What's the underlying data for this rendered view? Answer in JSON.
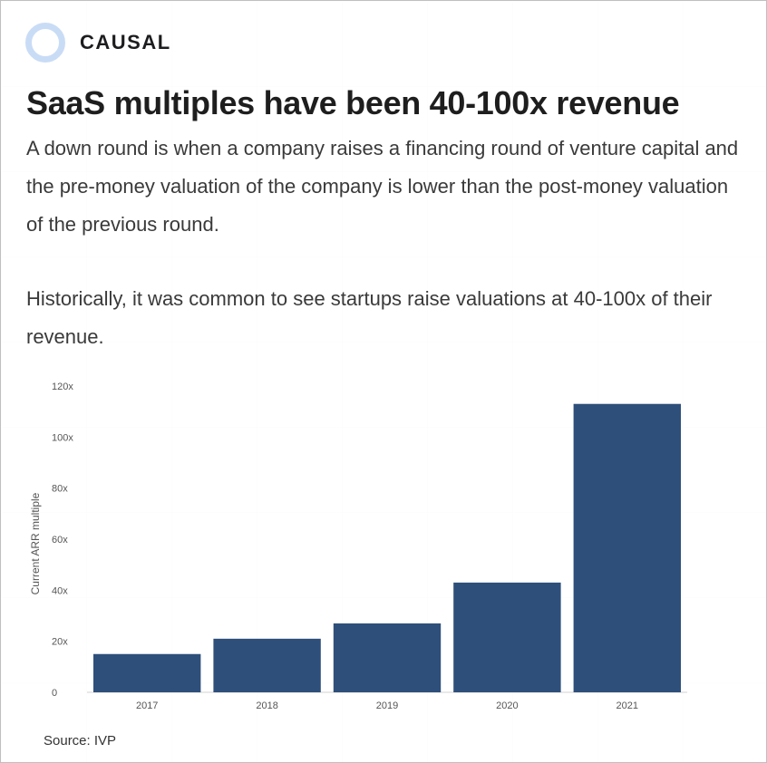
{
  "brand": {
    "name": "CAUSAL",
    "logo_icon": "ring-icon",
    "logo_color": "#c9dcf6"
  },
  "title": "SaaS multiples have been 40-100x revenue",
  "paragraphs": [
    "A down round is when a company raises a financing round of venture capital and the pre-money valuation of the company is lower than the post-money valuation of the previous round.",
    "Historically, it was common to see startups raise valuations at 40-100x of their revenue."
  ],
  "source": "Source: IVP",
  "chart_data": {
    "type": "bar",
    "categories": [
      "2017",
      "2018",
      "2019",
      "2020",
      "2021"
    ],
    "values": [
      15,
      21,
      27,
      43,
      113
    ],
    "ylabel": "Current ARR multiple",
    "ylim": [
      0,
      120
    ],
    "yticks": [
      {
        "value": 0,
        "label": "0"
      },
      {
        "value": 20,
        "label": "20x"
      },
      {
        "value": 40,
        "label": "40x"
      },
      {
        "value": 60,
        "label": "60x"
      },
      {
        "value": 80,
        "label": "80x"
      },
      {
        "value": 100,
        "label": "100x"
      },
      {
        "value": 120,
        "label": "120x"
      }
    ],
    "grid": false,
    "bar_color": "#2e4f7a"
  }
}
